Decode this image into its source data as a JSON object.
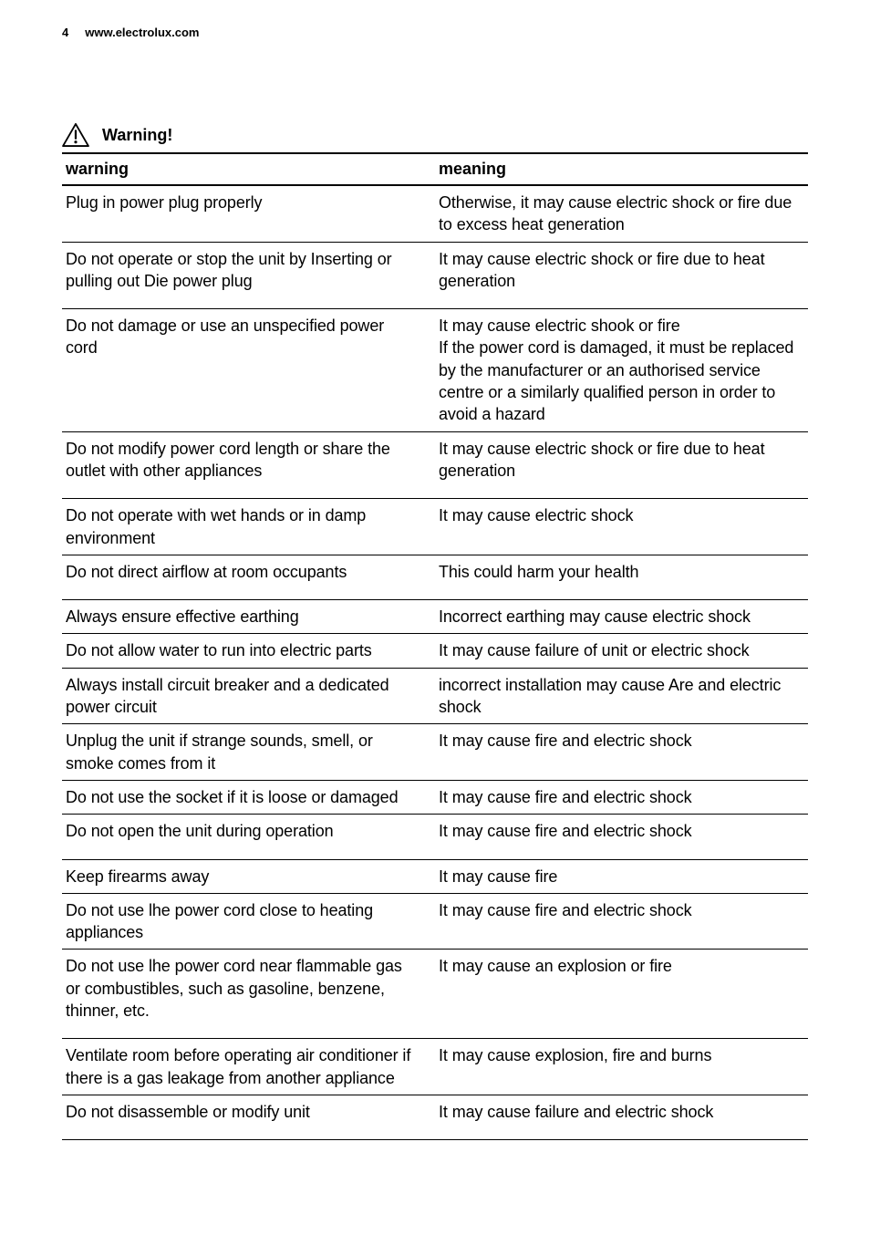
{
  "header": {
    "page_number": "4",
    "site": "www.electrolux.com"
  },
  "warning_label": "Warning!",
  "table": {
    "head": {
      "left": "warning",
      "right": "meaning"
    },
    "rows": [
      {
        "left": "Plug in power plug properly",
        "right": "Otherwise, it may cause electric shock or fire due to excess heat generation",
        "cls": ""
      },
      {
        "left": "Do not operate or stop the unit by Inserting or pulling out Die power plug",
        "right": "It may cause electric shock or fire due to heat generation",
        "cls": "med"
      },
      {
        "left": "Do not damage or use an unspecified power cord",
        "right": "It may cause electric shook or fire\nIf the power cord is damaged, it must be replaced by the manufacturer or an authorised service centre or a similarly qualified person in order to avoid a hazard",
        "cls": ""
      },
      {
        "left": "Do not modify power cord length or share the outlet with other appliances",
        "right": "It may cause electric shock or fire due to heat generation",
        "cls": "med"
      },
      {
        "left": "Do not operate with wet hands or in damp environment",
        "right": "It may cause electric shock",
        "cls": ""
      },
      {
        "left": "Do not direct airflow at room occupants",
        "right": "This could harm your health",
        "cls": "med"
      },
      {
        "left": "Always ensure effective earthing",
        "right": "Incorrect earthing may cause electric shock",
        "cls": ""
      },
      {
        "left": "Do not allow water to run into electric parts",
        "right": "It may cause failure of unit or electric shock",
        "cls": ""
      },
      {
        "left": "Always install circuit breaker and a dedicated power circuit",
        "right": "incorrect installation may cause Are and electric shock",
        "cls": ""
      },
      {
        "left": "Unplug the unit if strange sounds, smell, or smoke comes from it",
        "right": "It may cause fire and electric shock",
        "cls": ""
      },
      {
        "left": "Do not use the socket if it is loose or damaged",
        "right": "It may cause fire and electric shock",
        "cls": ""
      },
      {
        "left": "Do not open the unit during operation",
        "right": "It may cause fire and electric shock",
        "cls": "med"
      },
      {
        "left": "Keep firearms away",
        "right": "It may cause fire",
        "cls": ""
      },
      {
        "left": "Do not use lhe power cord close to heating appliances",
        "right": "It may cause fire and electric shock",
        "cls": ""
      },
      {
        "left": "Do not use lhe power cord near flammable gas or combustibles, such as gasoline, benzene, thinner, etc.",
        "right": "It may cause an explosion or fire",
        "cls": "med"
      },
      {
        "left": "Ventilate room before operating air conditioner if there is a gas leakage from another appliance",
        "right": "It may cause explosion, fire and burns",
        "cls": ""
      },
      {
        "left": "Do not disassemble or modify unit",
        "right": "It may cause failure and electric shock",
        "cls": "med"
      }
    ]
  }
}
